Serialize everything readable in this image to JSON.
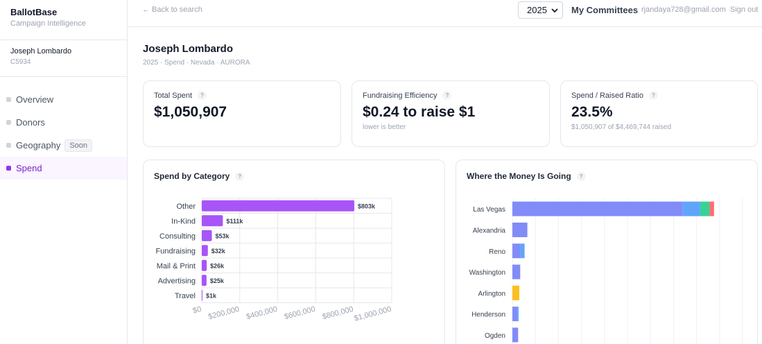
{
  "brand": {
    "name": "BallotBase",
    "tagline": "Campaign Intelligence"
  },
  "candidate": {
    "name": "Joseph Lombardo",
    "id": "C5934"
  },
  "nav": [
    {
      "label": "Overview",
      "active": false
    },
    {
      "label": "Donors",
      "active": false
    },
    {
      "label": "Geography",
      "active": false,
      "badge": "Soon"
    },
    {
      "label": "Spend",
      "active": true
    }
  ],
  "topbar": {
    "back_label": "← Back to search",
    "year": "2025",
    "my_committees": "My Committees",
    "user_email": "rjandaya728@gmail.com",
    "sign_out": "Sign out"
  },
  "page": {
    "title": "Joseph Lombardo",
    "subtitle": "2025 · Spend · Nevada · AURORA"
  },
  "stats": [
    {
      "label": "Total Spent",
      "value": "$1,050,907",
      "sub": ""
    },
    {
      "label": "Fundraising Efficiency",
      "value": "$0.24 to raise $1",
      "sub": "lower is better"
    },
    {
      "label": "Spend / Raised Ratio",
      "value": "23.5%",
      "sub": "$1,050,907 of $4,469,744 raised"
    }
  ],
  "help_icon": "?",
  "colors": {
    "accent": "#9333ea",
    "bar_purple": "#a855f7",
    "indigo": "#818cf8",
    "blue": "#60a5fa",
    "green": "#34d399",
    "red": "#f87171",
    "amber": "#fbbf24"
  },
  "chart_data": [
    {
      "type": "bar",
      "orientation": "horizontal",
      "title": "Spend by Category",
      "categories": [
        "Other",
        "In-Kind",
        "Consulting",
        "Fundraising",
        "Mail & Print",
        "Advertising",
        "Travel"
      ],
      "values": [
        803000,
        111000,
        53000,
        32000,
        26000,
        25000,
        1000
      ],
      "data_labels": [
        "$803k",
        "$111k",
        "$53k",
        "$32k",
        "$26k",
        "$25k",
        "$1k"
      ],
      "xlim": [
        0,
        1000000
      ],
      "x_ticks": [
        0,
        200000,
        400000,
        600000,
        800000,
        1000000
      ],
      "x_tick_labels": [
        "$0",
        "$200,000",
        "$400,000",
        "$600,000",
        "$800,000",
        "$1,000,000"
      ],
      "grid": true,
      "color": "#a855f7"
    },
    {
      "type": "bar",
      "orientation": "horizontal",
      "stacked": true,
      "title": "Where the Money Is Going",
      "categories": [
        "Las Vegas",
        "Alexandria",
        "Reno",
        "Washington",
        "Arlington",
        "Henderson",
        "Ogden"
      ],
      "series": [
        {
          "color": "#818cf8",
          "values": [
            740000,
            65000,
            35000,
            34000,
            0,
            22000,
            25000
          ]
        },
        {
          "color": "#60a5fa",
          "values": [
            76000,
            0,
            18000,
            0,
            0,
            5000,
            0
          ]
        },
        {
          "color": "#34d399",
          "values": [
            40000,
            0,
            0,
            0,
            0,
            0,
            0
          ]
        },
        {
          "color": "#f87171",
          "values": [
            20000,
            0,
            0,
            0,
            0,
            0,
            0
          ]
        },
        {
          "color": "#fbbf24",
          "values": [
            0,
            0,
            0,
            0,
            30000,
            0,
            0
          ]
        }
      ],
      "xlim": [
        0,
        1000000
      ],
      "grid": true
    }
  ]
}
